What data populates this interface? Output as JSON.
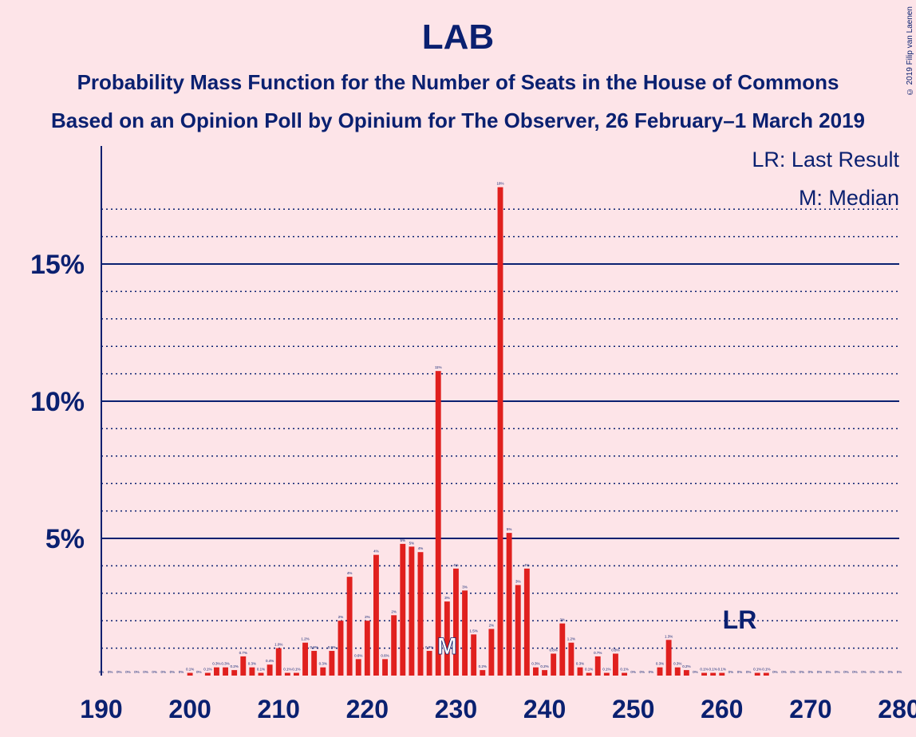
{
  "title": "LAB",
  "subtitle": "Probability Mass Function for the Number of Seats in the House of Commons",
  "subtitle2": "Based on an Opinion Poll by Opinium for The Observer, 26 February–1 March 2019",
  "copyright": "© 2019 Filip van Laenen",
  "legend": {
    "last_result": "LR: Last Result",
    "median": "M: Median"
  },
  "colors": {
    "background": "#fde4e8",
    "bar": "#e0201e",
    "axis": "#0a2070"
  },
  "chart_data": {
    "type": "bar",
    "title": "LAB",
    "xlabel": "",
    "ylabel": "",
    "xlim": [
      190,
      280
    ],
    "ylim": [
      0,
      19
    ],
    "x_ticks": [
      190,
      200,
      210,
      220,
      230,
      240,
      250,
      260,
      270,
      280
    ],
    "y_ticks": [
      {
        "value": 5,
        "label": "5%"
      },
      {
        "value": 10,
        "label": "10%"
      },
      {
        "value": 15,
        "label": "15%"
      }
    ],
    "grid": "dotted every 1%, solid every 5%",
    "last_result": {
      "x": 262,
      "label": "LR"
    },
    "median": {
      "x": 229,
      "label": "M"
    },
    "x": [
      190,
      191,
      192,
      193,
      194,
      195,
      196,
      197,
      198,
      199,
      200,
      201,
      202,
      203,
      204,
      205,
      206,
      207,
      208,
      209,
      210,
      211,
      212,
      213,
      214,
      215,
      216,
      217,
      218,
      219,
      220,
      221,
      222,
      223,
      224,
      225,
      226,
      227,
      228,
      229,
      230,
      231,
      232,
      233,
      234,
      235,
      236,
      237,
      238,
      239,
      240,
      241,
      242,
      243,
      244,
      245,
      246,
      247,
      248,
      249,
      250,
      251,
      252,
      253,
      254,
      255,
      256,
      257,
      258,
      259,
      260,
      261,
      262,
      263,
      264,
      265,
      266,
      267,
      268,
      269,
      270,
      271,
      272,
      273,
      274,
      275,
      276,
      277,
      278,
      279,
      280
    ],
    "values": [
      0,
      0,
      0,
      0,
      0,
      0,
      0,
      0,
      0,
      0,
      0.1,
      0,
      0.1,
      0.3,
      0.3,
      0.2,
      0.7,
      0.3,
      0.1,
      0.4,
      1,
      0.1,
      0.1,
      1.2,
      0.9,
      0.3,
      0.9,
      2,
      3.6,
      0.6,
      2,
      4.4,
      0.6,
      2.2,
      4.8,
      4.7,
      4.5,
      0.9,
      11.1,
      2.7,
      3.9,
      3.1,
      1.5,
      0.2,
      1.7,
      17.8,
      5.2,
      3.3,
      3.9,
      0.3,
      0.2,
      0.8,
      1.9,
      1.2,
      0.3,
      0.1,
      0.7,
      0.1,
      0.8,
      0.1,
      0,
      0,
      0,
      0.3,
      1.3,
      0.3,
      0.2,
      0,
      0.1,
      0.1,
      0.1,
      0,
      0,
      0,
      0.1,
      0.1,
      0,
      0,
      0,
      0,
      0,
      0,
      0,
      0,
      0,
      0,
      0,
      0,
      0,
      0,
      0
    ],
    "labels": [
      "0%",
      "0%",
      "0%",
      "0%",
      "0%",
      "0%",
      "0%",
      "0%",
      "0%",
      "0%",
      "0.1%",
      "0%",
      "0.1%",
      "0.3%",
      "0.3%",
      "0.2%",
      "0.7%",
      "0.3%",
      "0.1%",
      "0.4%",
      "1.0%",
      "0.1%",
      "0.1%",
      "1.2%",
      "0.9%",
      "0.3%",
      "0.9%",
      "2%",
      "4%",
      "0.6%",
      "2%",
      "4%",
      "0.6%",
      "2%",
      "5%",
      "5%",
      "4%",
      "0.9%",
      "11%",
      "3%",
      "4%",
      "3%",
      "1.5%",
      "0.2%",
      "2%",
      "18%",
      "5%",
      "3%",
      "4%",
      "0.3%",
      "0.2%",
      "0.8%",
      "2%",
      "1.2%",
      "0.3%",
      "0.1%",
      "0.7%",
      "0.1%",
      "0.8%",
      "0.1%",
      "0%",
      "0%",
      "0%",
      "0.3%",
      "1.3%",
      "0.3%",
      "0.2%",
      "0%",
      "0.1%",
      "0.1%",
      "0.1%",
      "0%",
      "0%",
      "0%",
      "0.1%",
      "0.1%",
      "0%",
      "0%",
      "0%",
      "0%",
      "0%",
      "0%",
      "0%",
      "0%",
      "0%",
      "0%",
      "0%",
      "0%",
      "0%",
      "0%",
      "0%"
    ]
  }
}
